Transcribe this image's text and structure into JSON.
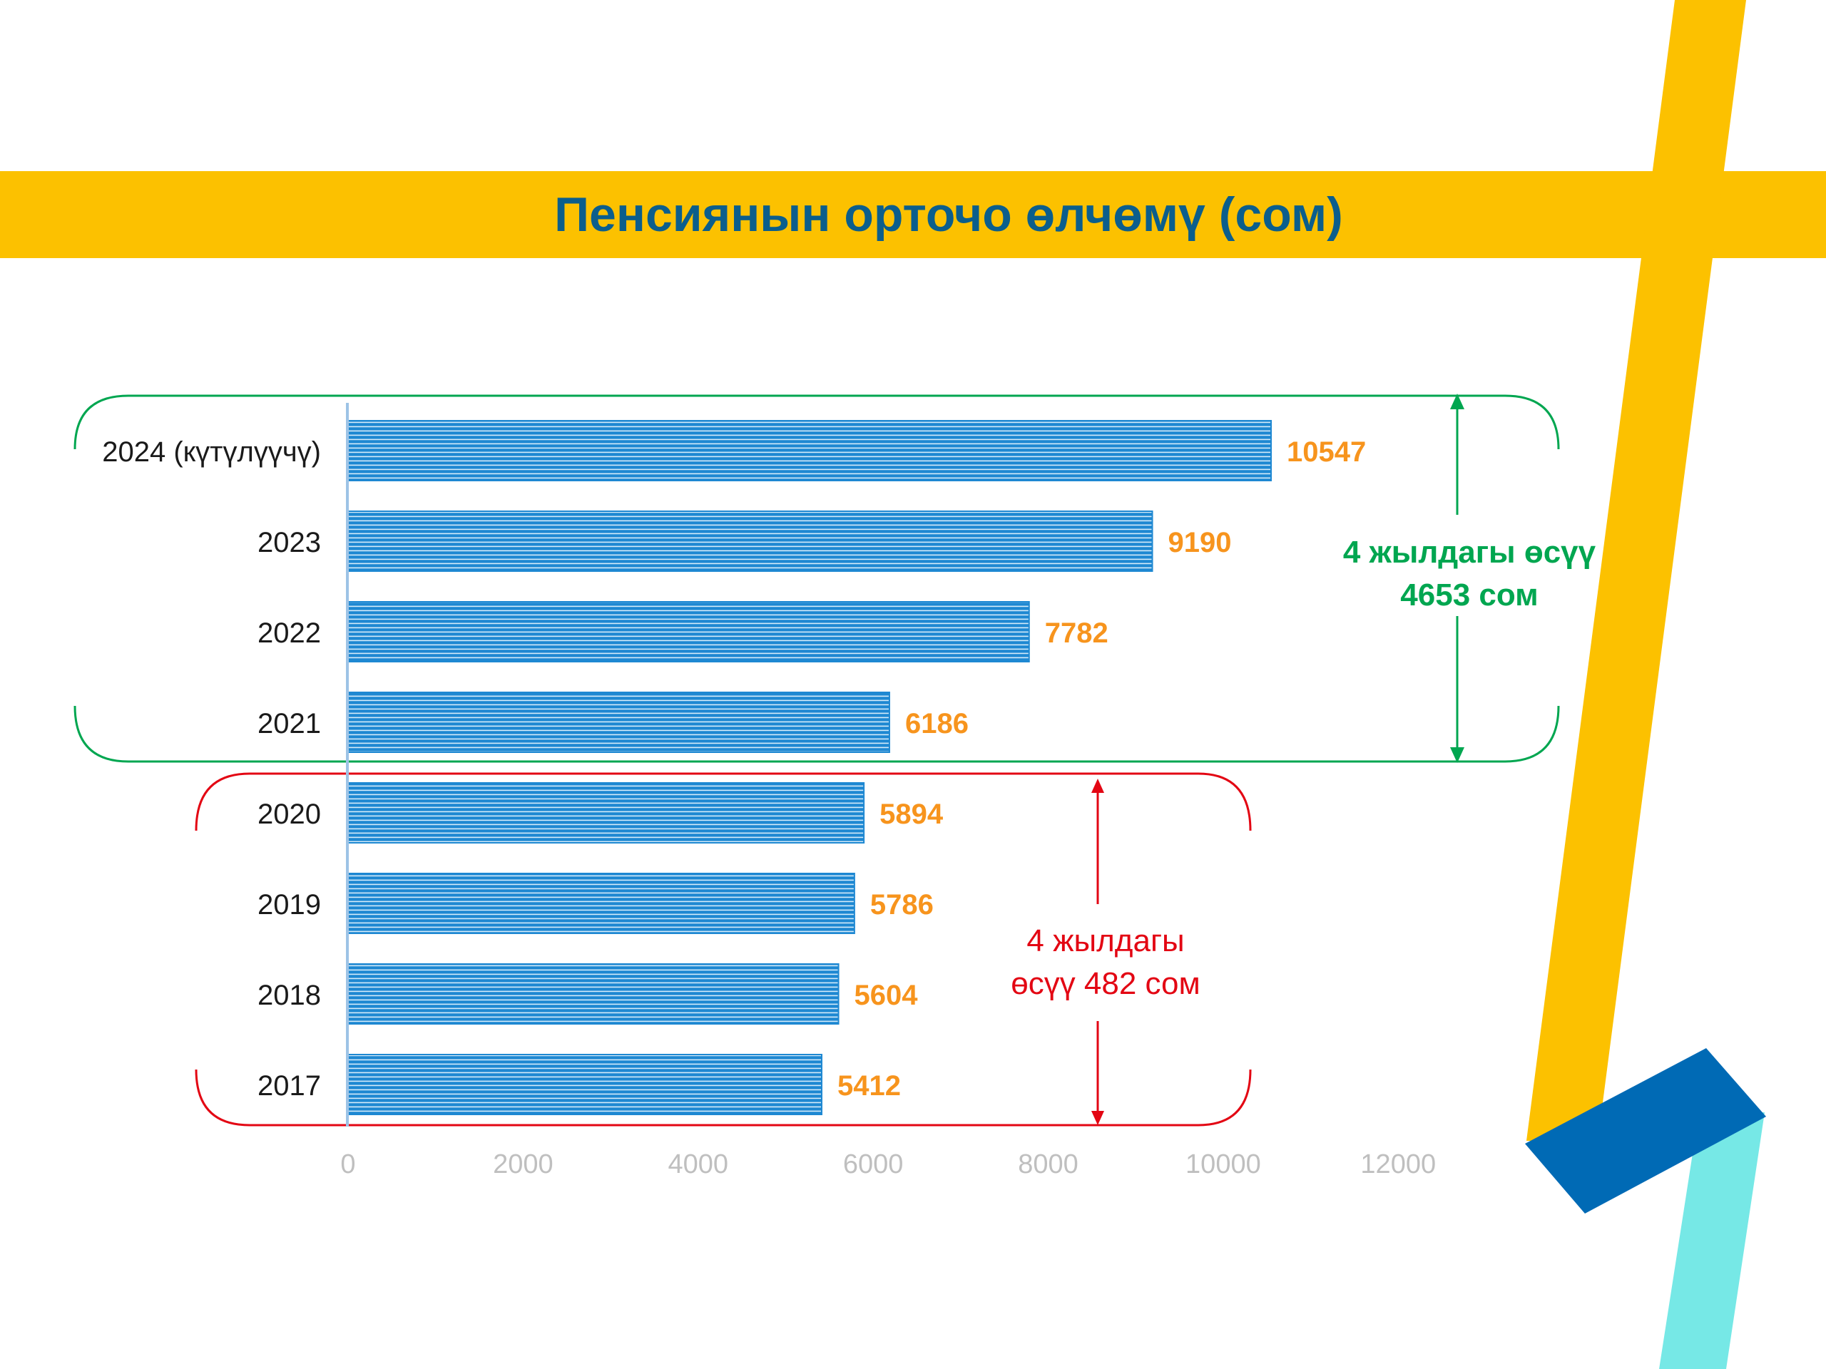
{
  "header": {
    "title": "Пенсиянын орточо өлчөмү (сом)"
  },
  "colors": {
    "band_yellow": "#FCC100",
    "title_blue": "#0B5E8C",
    "bar_blue": "#1E88D2",
    "value_orange": "#F7941D",
    "green": "#00A650",
    "red": "#E30613",
    "tick_gray": "#BFBFBF",
    "deco_blue": "#006AB5",
    "deco_cyan": "#76E8E6"
  },
  "annotations": {
    "green": {
      "line1": "4 жылдагы өсүү",
      "line2": "4653 сом"
    },
    "red": {
      "line1": "4 жылдагы",
      "line2": "өсүү 482 сом"
    }
  },
  "chart_data": {
    "type": "bar",
    "orientation": "horizontal",
    "title": "Пенсиянын орточо өлчөмү (сом)",
    "categories": [
      "2024 (күтүлүүчү)",
      "2023",
      "2022",
      "2021",
      "2020",
      "2019",
      "2018",
      "2017"
    ],
    "values": [
      10547,
      9190,
      7782,
      6186,
      5894,
      5786,
      5604,
      5412
    ],
    "value_labels": [
      "10547",
      "9190",
      "7782",
      "6186",
      "5894",
      "5786",
      "5604",
      "5412"
    ],
    "x_ticks": [
      0,
      2000,
      4000,
      6000,
      8000,
      10000,
      12000
    ],
    "x_tick_labels": [
      "0",
      "2000",
      "4000",
      "6000",
      "8000",
      "10000",
      "12000"
    ],
    "xlim": [
      0,
      12000
    ],
    "grid": false,
    "legend": "none"
  }
}
